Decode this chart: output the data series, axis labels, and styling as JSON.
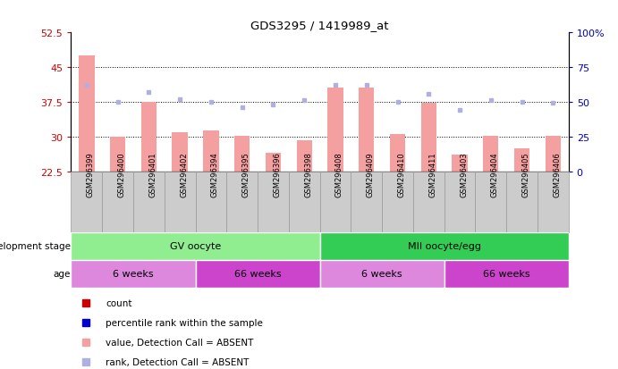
{
  "title": "GDS3295 / 1419989_at",
  "samples": [
    "GSM296399",
    "GSM296400",
    "GSM296401",
    "GSM296402",
    "GSM296394",
    "GSM296395",
    "GSM296396",
    "GSM296398",
    "GSM296408",
    "GSM296409",
    "GSM296410",
    "GSM296411",
    "GSM296403",
    "GSM296404",
    "GSM296405",
    "GSM296406"
  ],
  "bar_values": [
    47.5,
    30.0,
    37.5,
    31.0,
    31.2,
    30.2,
    26.5,
    29.2,
    40.5,
    40.5,
    30.5,
    37.2,
    26.0,
    30.2,
    27.5,
    30.2
  ],
  "rank_values": [
    62,
    50,
    57,
    52,
    50,
    46,
    48,
    51,
    62,
    62,
    50,
    56,
    44,
    51,
    50,
    49
  ],
  "bar_color_absent": "#f4a0a0",
  "rank_color_absent": "#b0b0e0",
  "bar_color_present": "#cc0000",
  "rank_color_present": "#0000cc",
  "absent_flags": [
    true,
    true,
    true,
    true,
    true,
    true,
    true,
    true,
    true,
    true,
    true,
    true,
    true,
    true,
    true,
    true
  ],
  "ylim_left": [
    22.5,
    52.5
  ],
  "ylim_right": [
    0,
    100
  ],
  "yticks_left": [
    22.5,
    30,
    37.5,
    45,
    52.5
  ],
  "yticks_right": [
    0,
    25,
    50,
    75,
    100
  ],
  "ytick_labels_left": [
    "22.5",
    "30",
    "37.5",
    "45",
    "52.5"
  ],
  "ytick_labels_right": [
    "0",
    "25",
    "50",
    "75",
    "100%"
  ],
  "hlines": [
    30,
    37.5,
    45
  ],
  "dev_stage_groups": [
    {
      "label": "GV oocyte",
      "start": 0,
      "end": 8,
      "color": "#90ee90"
    },
    {
      "label": "MII oocyte/egg",
      "start": 8,
      "end": 16,
      "color": "#33cc55"
    }
  ],
  "age_groups": [
    {
      "label": "6 weeks",
      "start": 0,
      "end": 4,
      "color": "#dd88dd"
    },
    {
      "label": "66 weeks",
      "start": 4,
      "end": 8,
      "color": "#cc44cc"
    },
    {
      "label": "6 weeks",
      "start": 8,
      "end": 12,
      "color": "#dd88dd"
    },
    {
      "label": "66 weeks",
      "start": 12,
      "end": 16,
      "color": "#cc44cc"
    }
  ],
  "legend_items": [
    {
      "label": "count",
      "color": "#cc0000"
    },
    {
      "label": "percentile rank within the sample",
      "color": "#0000cc"
    },
    {
      "label": "value, Detection Call = ABSENT",
      "color": "#f4a0a0"
    },
    {
      "label": "rank, Detection Call = ABSENT",
      "color": "#b0b0e0"
    }
  ],
  "dev_stage_label": "development stage",
  "age_label": "age",
  "bar_width": 0.5,
  "left_label_color": "#cc0000",
  "right_label_color": "#0000bb",
  "xtick_box_color": "#cccccc",
  "xtick_box_edge": "#999999"
}
